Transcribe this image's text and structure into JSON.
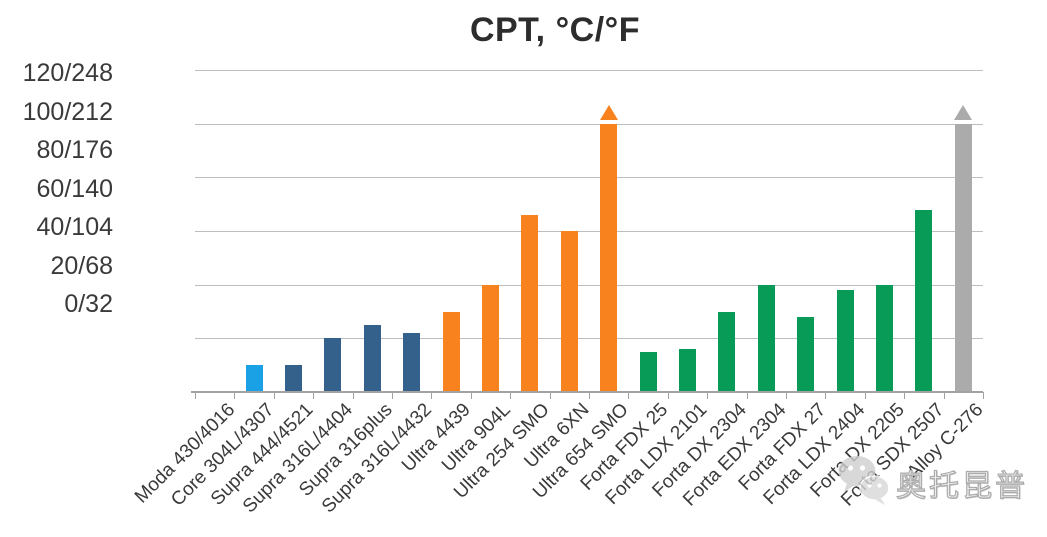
{
  "chart_data": {
    "type": "bar",
    "title": "CPT, °C/°F",
    "xlabel": "",
    "ylabel": "CPT, °C/°F",
    "value_unit": "°C",
    "ylim": [
      0,
      120
    ],
    "grid": "horizontal",
    "legend": "none",
    "yaxis_tick_labels": [
      "120/248",
      "100/212",
      "80/176",
      "60/140",
      "40/104",
      "20/68",
      "0/32"
    ],
    "gridline_values": [
      120,
      100,
      80,
      60,
      40,
      20,
      0
    ],
    "categories": [
      "Moda 430/4016",
      "Core 304L/4307",
      "Supra 444/4521",
      "Supra 316L/4404",
      "Supra 316plus",
      "Supra 316L/4432",
      "Ultra 4439",
      "Ultra 904L",
      "Ultra 254 SMO",
      "Ultra 6XN",
      "Ultra 654 SMO",
      "Forta FDX 25",
      "Forta LDX 2101",
      "Forta DX 2304",
      "Forta EDX 2304",
      "Forta FDX 27",
      "Forta LDX 2404",
      "Forta DX 2205",
      "Forta SDX 2507",
      "Alloy C-276"
    ],
    "values": [
      0,
      10,
      10,
      20,
      25,
      22,
      30,
      40,
      66,
      60,
      100,
      15,
      16,
      30,
      40,
      28,
      38,
      40,
      68,
      100
    ],
    "bar_colors": [
      "#1aa0e4",
      "#1aa0e4",
      "#33618c",
      "#33618c",
      "#33618c",
      "#33618c",
      "#f8821e",
      "#f8821e",
      "#f8821e",
      "#f8821e",
      "#f8821e",
      "#089b57",
      "#089b57",
      "#089b57",
      "#089b57",
      "#089b57",
      "#089b57",
      "#089b57",
      "#089b57",
      "#ababab"
    ],
    "arrow_indices": [
      10,
      19
    ],
    "arrow_note": "triangle marker above bar: value exceeds axis maximum shown"
  },
  "watermark": {
    "icon": "wechat-icon",
    "text": "奥托昆普"
  },
  "colors": {
    "light_blue": "#1aa0e4",
    "steel_blue": "#33618c",
    "orange": "#f8821e",
    "green": "#089b57",
    "gray_bar": "#ababab",
    "gridline": "#bdbdbd",
    "axis_line": "#a3a3a3",
    "title_text": "#2d2d2d",
    "label_text": "#3a3a3a",
    "watermark_gray": "#ababab"
  }
}
